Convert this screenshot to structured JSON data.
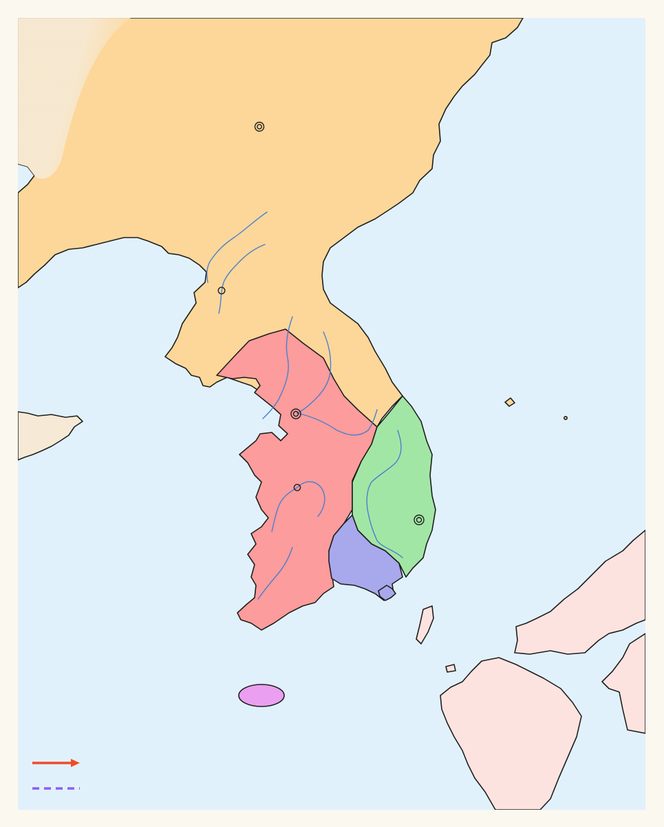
{
  "map": {
    "colors": {
      "sea": "#e1f1fb",
      "northern_kingdom": "#fcd799",
      "western_kingdom": "#fc9c9c",
      "eastern_kingdom": "#a2e6a5",
      "southern_confederacy": "#a8a8ec",
      "island_state": "#ea9ff0",
      "foreign_land_west": "#f6ead6",
      "foreign_land_east": "#fde3e0",
      "river": "#4a7fd1"
    },
    "legend": {
      "items": [
        {
          "symbol": "solid-arrow",
          "color": "#f04b2a",
          "label": ""
        },
        {
          "symbol": "dashed-line",
          "color": "#8b5ef5",
          "label": ""
        }
      ]
    }
  }
}
